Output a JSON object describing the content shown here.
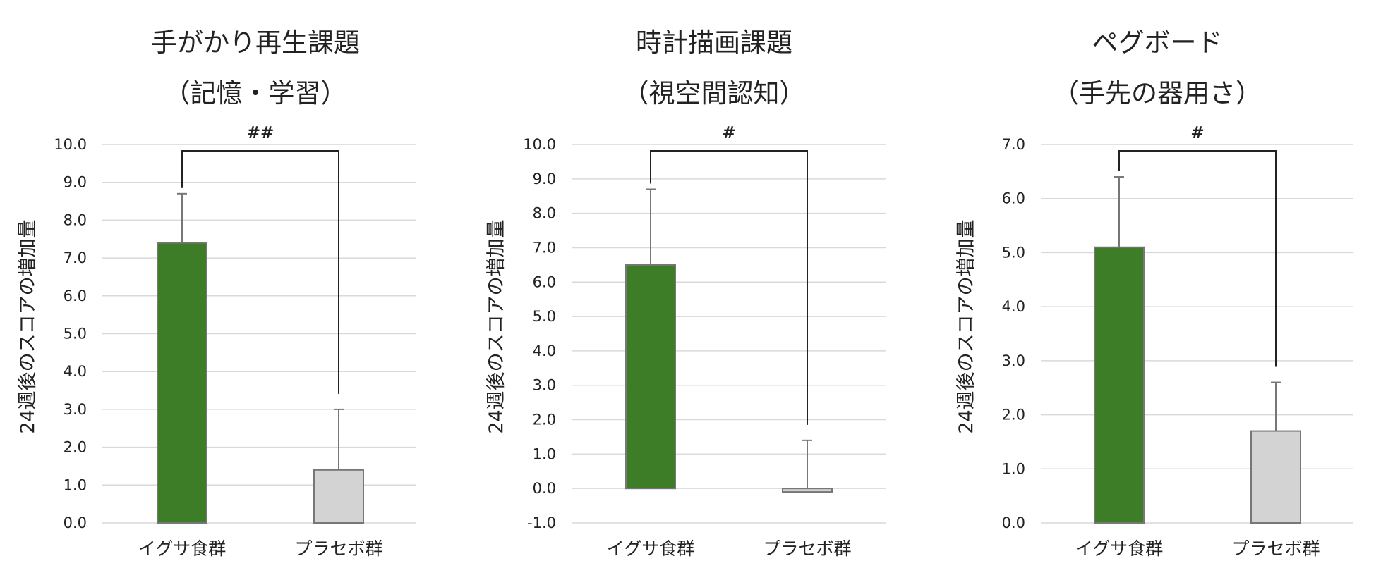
{
  "colors": {
    "treatment": "#3d7d28",
    "placebo": "#d3d3d3",
    "bar_border": "#777777",
    "grid": "#d9d9d9",
    "bracket": "#222222"
  },
  "chart_data": [
    {
      "type": "bar",
      "title": [
        "手がかり再生課題",
        "（記憶・学習）"
      ],
      "ylabel": "24週後のスコアの増加量",
      "xlabel": "",
      "categories": [
        "イグサ食群",
        "プラセボ群"
      ],
      "values": [
        7.4,
        1.4
      ],
      "error_upper": [
        8.7,
        3.0
      ],
      "ylim": [
        0,
        10
      ],
      "ytick_step": 1,
      "yticks": [
        "0.0",
        "1.0",
        "2.0",
        "3.0",
        "4.0",
        "5.0",
        "6.0",
        "7.0",
        "8.0",
        "9.0",
        "10.0"
      ],
      "significance": "##",
      "grid": true
    },
    {
      "type": "bar",
      "title": [
        "時計描画課題",
        "（視空間認知）"
      ],
      "ylabel": "24週後のスコアの増加量",
      "xlabel": "",
      "categories": [
        "イグサ食群",
        "プラセボ群"
      ],
      "values": [
        6.5,
        -0.1
      ],
      "error_upper": [
        8.7,
        1.4
      ],
      "ylim": [
        -1,
        10
      ],
      "ytick_step": 1,
      "yticks": [
        "-1.0",
        "0.0",
        "1.0",
        "2.0",
        "3.0",
        "4.0",
        "5.0",
        "6.0",
        "7.0",
        "8.0",
        "9.0",
        "10.0"
      ],
      "significance": "#",
      "grid": true
    },
    {
      "type": "bar",
      "title": [
        "ペグボード",
        "（手先の器用さ）"
      ],
      "ylabel": "24週後のスコアの増加量",
      "xlabel": "",
      "categories": [
        "イグサ食群",
        "プラセボ群"
      ],
      "values": [
        5.1,
        1.7
      ],
      "error_upper": [
        6.4,
        2.6
      ],
      "ylim": [
        0,
        7
      ],
      "ytick_step": 1,
      "yticks": [
        "0.0",
        "1.0",
        "2.0",
        "3.0",
        "4.0",
        "5.0",
        "6.0",
        "7.0"
      ],
      "significance": "#",
      "grid": true
    }
  ]
}
